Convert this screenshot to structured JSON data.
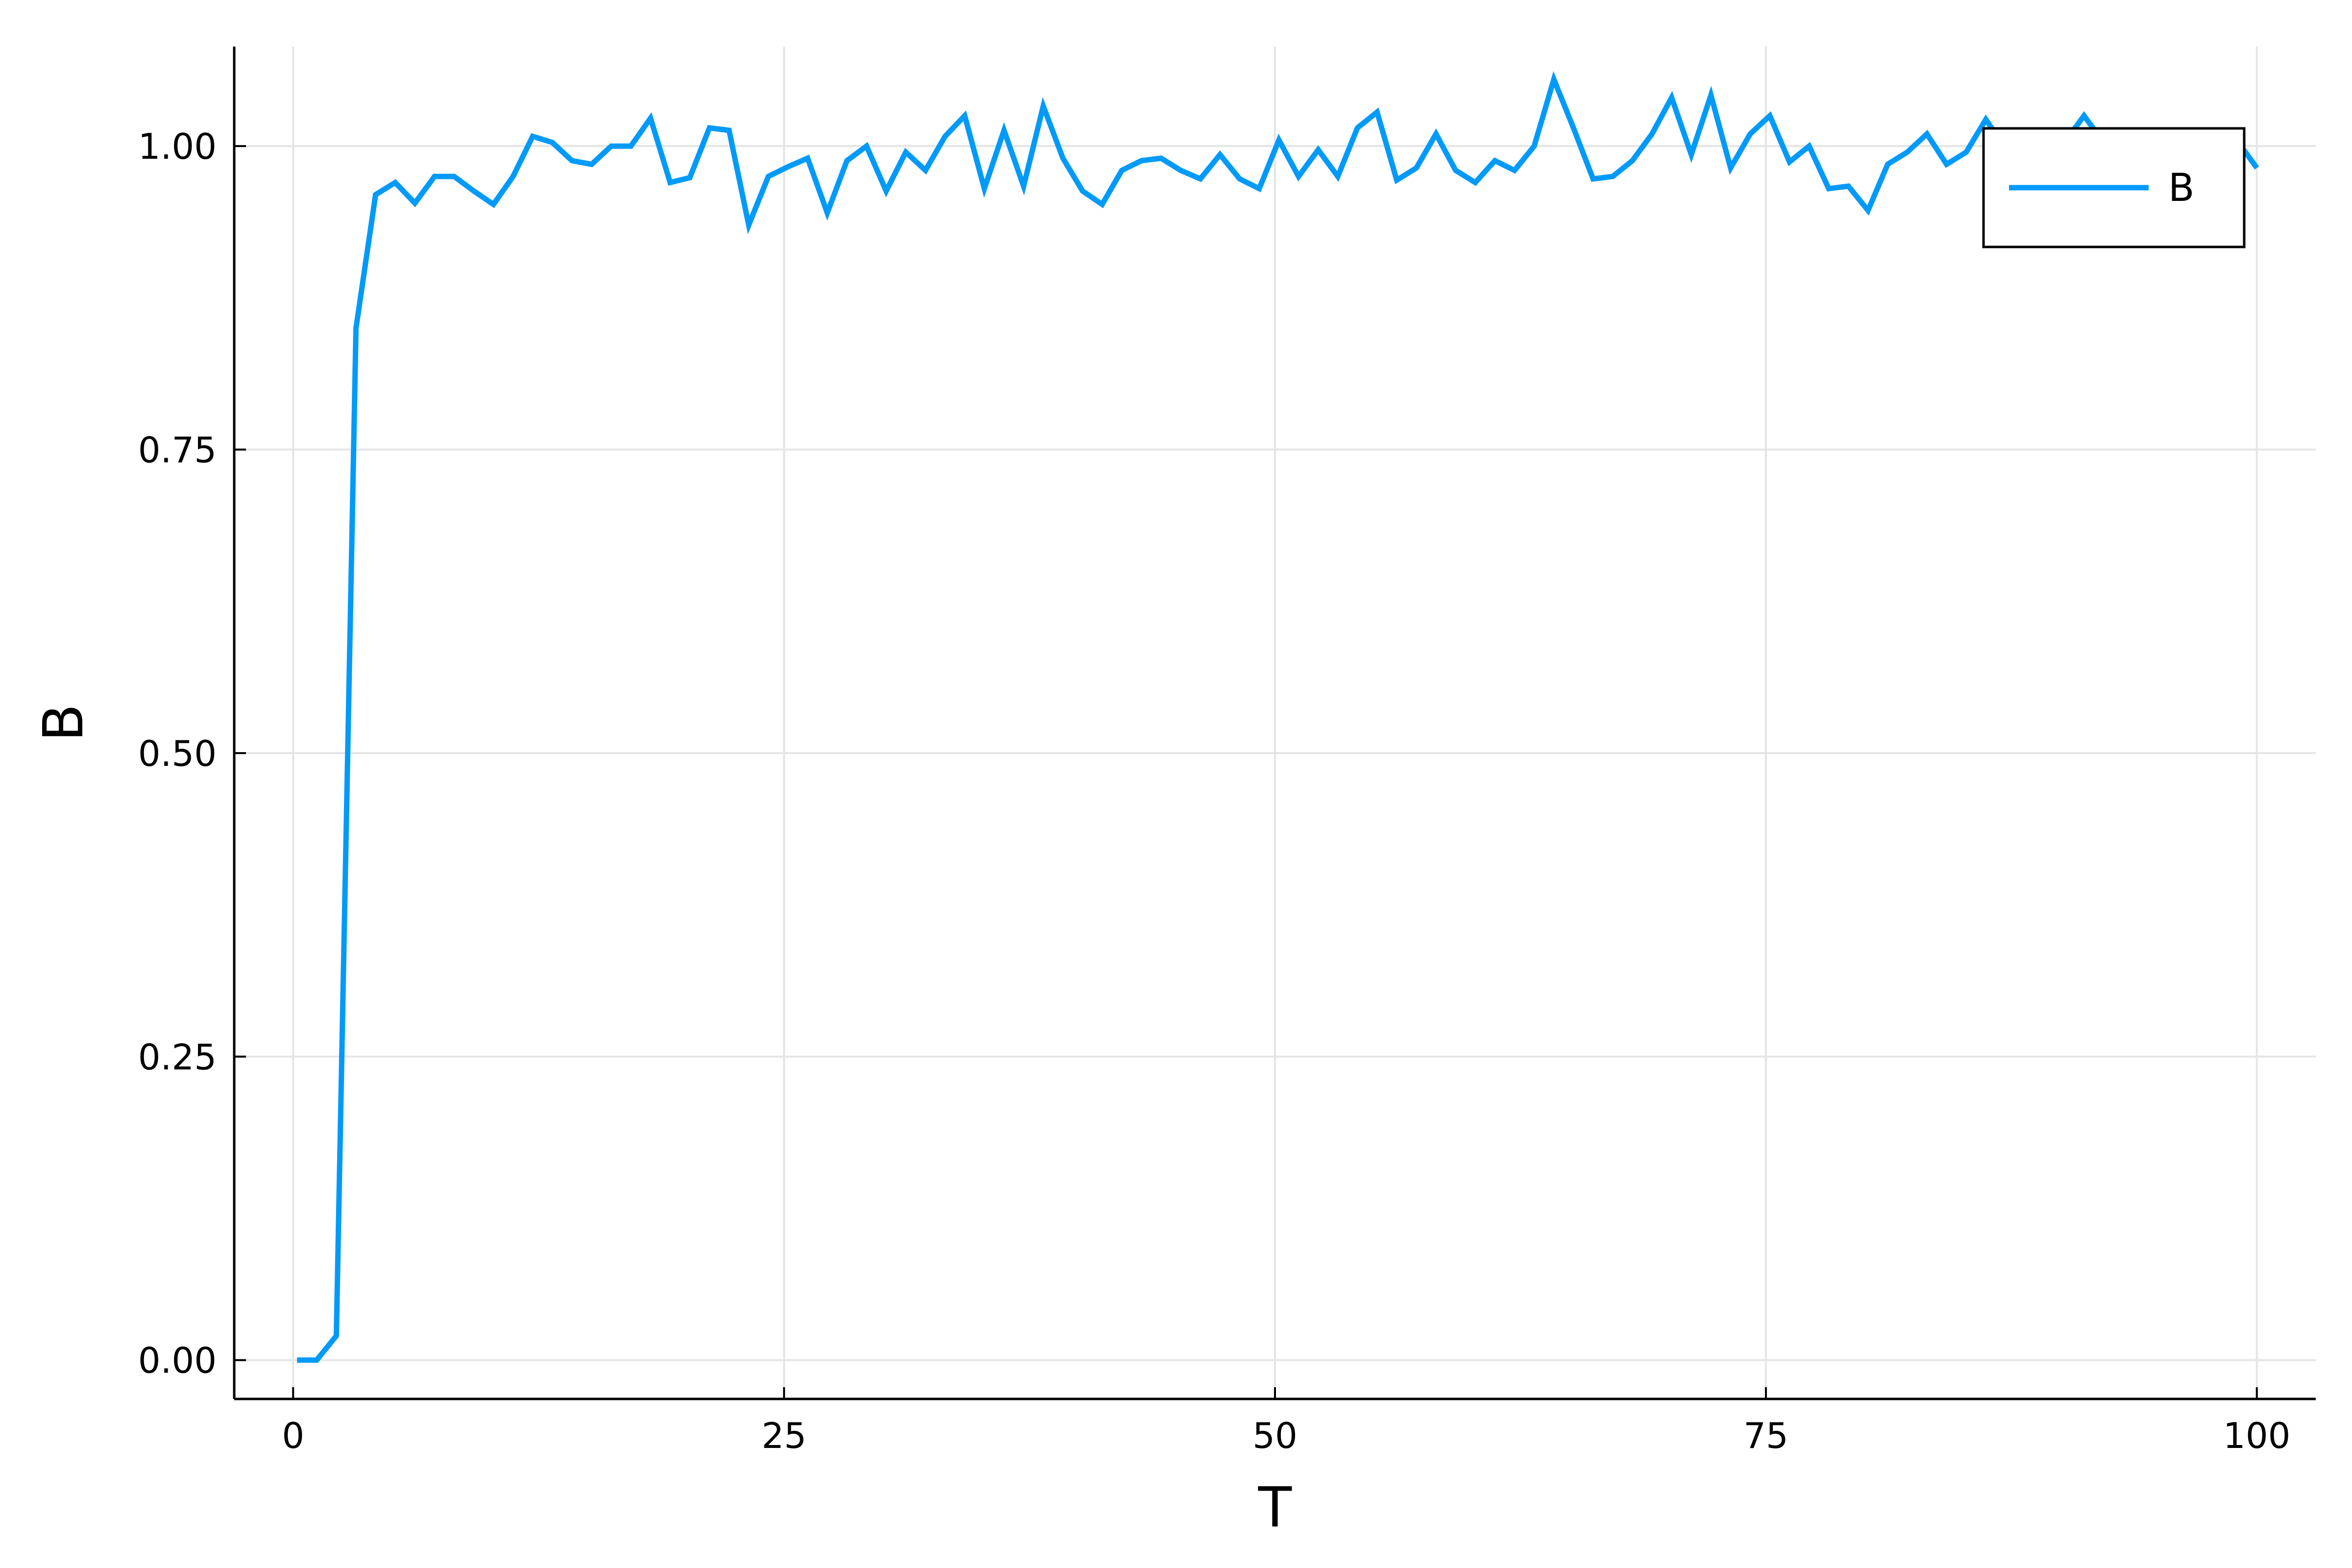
{
  "chart_data": {
    "type": "line",
    "title": "",
    "xlabel": "T",
    "ylabel": "B",
    "xlim": [
      -3,
      103
    ],
    "ylim": [
      -0.032,
      1.082
    ],
    "xticks": [
      0,
      25,
      50,
      75,
      100
    ],
    "xtick_labels": [
      "0",
      "25",
      "50",
      "75",
      "100"
    ],
    "yticks": [
      0,
      0.25,
      0.5,
      0.75,
      1.0
    ],
    "ytick_labels": [
      "0.00",
      "0.25",
      "0.50",
      "0.75",
      "1.00"
    ],
    "grid": true,
    "legend_position": "top-right",
    "colors": {
      "series": "#009af9",
      "grid": "#e5e5e5",
      "axis": "#000000"
    },
    "series": [
      {
        "name": "B",
        "x": [
          0.2,
          1.2,
          2.2,
          3.2,
          4.2,
          5.2,
          6.2,
          7.2,
          8.2,
          9.2,
          10.2,
          11.2,
          12.2,
          13.2,
          14.2,
          15.2,
          16.2,
          17.2,
          18.2,
          19.2,
          20.2,
          21.2,
          22.2,
          23.2,
          24.2,
          25.2,
          26.2,
          27.2,
          28.2,
          29.2,
          30.2,
          31.2,
          32.2,
          33.2,
          34.2,
          35.2,
          36.2,
          37.2,
          38.2,
          39.2,
          40.2,
          41.2,
          42.2,
          43.2,
          44.2,
          45.2,
          46.2,
          47.2,
          48.2,
          49.2,
          50.2,
          51.2,
          52.2,
          53.2,
          54.2,
          55.2,
          56.2,
          57.2,
          58.2,
          59.2,
          60.2,
          61.2,
          62.2,
          63.2,
          64.2,
          65.2,
          66.2,
          67.2,
          68.2,
          69.2,
          70.2,
          71.2,
          72.2,
          73.2,
          74.2,
          75.2,
          76.2,
          77.2,
          78.2,
          79.2,
          80.2,
          81.2,
          82.2,
          83.2,
          84.2,
          85.2,
          86.2,
          87.2,
          88.2,
          89.2,
          90.2,
          91.2,
          92.2,
          93.2,
          94.2,
          95.2,
          96.2,
          97.2,
          98.2,
          99.2,
          100.0
        ],
        "y": [
          0.0,
          0.0,
          0.02,
          0.85,
          0.96,
          0.97,
          0.953,
          0.975,
          0.975,
          0.963,
          0.952,
          0.975,
          1.008,
          1.003,
          0.988,
          0.985,
          1.0,
          1.0,
          1.023,
          0.97,
          0.974,
          1.015,
          1.013,
          0.935,
          0.975,
          0.983,
          0.99,
          0.945,
          0.988,
          1.0,
          0.963,
          0.995,
          0.98,
          1.008,
          1.025,
          0.965,
          1.013,
          0.967,
          1.033,
          0.99,
          0.963,
          0.952,
          0.98,
          0.988,
          0.99,
          0.98,
          0.973,
          0.993,
          0.973,
          0.965,
          1.005,
          0.975,
          0.997,
          0.975,
          1.015,
          1.028,
          0.972,
          0.982,
          1.01,
          0.98,
          0.97,
          0.988,
          0.98,
          1.0,
          1.055,
          1.015,
          0.973,
          0.975,
          0.988,
          1.01,
          1.04,
          0.993,
          1.042,
          0.982,
          1.01,
          1.025,
          0.987,
          1.0,
          0.965,
          0.967,
          0.947,
          0.985,
          0.995,
          1.01,
          0.985,
          0.995,
          1.022,
          0.998,
          0.995,
          0.995,
          1.003,
          1.025,
          1.003,
          0.995,
          0.995,
          1.0,
          1.0,
          1.005,
          0.99,
          1.0,
          0.982
        ]
      }
    ]
  }
}
